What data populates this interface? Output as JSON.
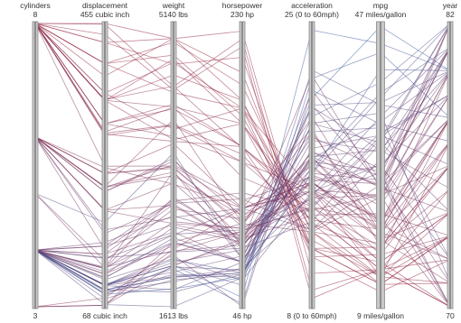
{
  "chart_data": {
    "type": "parallel-coordinates",
    "color_scale": {
      "high_mpg": "#3a5fa5",
      "low_mpg": "#a0243a"
    },
    "highlighted_axis": "mpg",
    "axes": [
      {
        "key": "cylinders",
        "name": "cylinders",
        "max_label": "8",
        "min_label": "3",
        "max": 8,
        "min": 3
      },
      {
        "key": "displacement",
        "name": "displacement",
        "max_label": "455 cubic inch",
        "min_label": "68 cubic inch",
        "max": 455,
        "min": 68
      },
      {
        "key": "weight",
        "name": "weight",
        "max_label": "5140 lbs",
        "min_label": "1613 lbs",
        "max": 5140,
        "min": 1613
      },
      {
        "key": "horsepower",
        "name": "horsepower",
        "max_label": "230 hp",
        "min_label": "46 hp",
        "max": 230,
        "min": 46
      },
      {
        "key": "acceleration",
        "name": "acceleration",
        "max_label": "25 (0 to 60mph)",
        "min_label": "8 (0 to 60mph)",
        "max": 25,
        "min": 8
      },
      {
        "key": "mpg",
        "name": "mpg",
        "max_label": "47 miles/gallon",
        "min_label": "9 miles/gallon",
        "max": 47,
        "min": 9
      },
      {
        "key": "year",
        "name": "year",
        "max_label": "82",
        "min_label": "70",
        "max": 82,
        "min": 70
      }
    ],
    "records": [
      [
        8,
        455,
        4951,
        225,
        10,
        14,
        73
      ],
      [
        8,
        440,
        4312,
        215,
        8.5,
        14,
        70
      ],
      [
        8,
        429,
        4633,
        208,
        11,
        11,
        72
      ],
      [
        8,
        400,
        4906,
        190,
        12.5,
        12,
        73
      ],
      [
        8,
        454,
        4354,
        220,
        9,
        14,
        70
      ],
      [
        8,
        350,
        4499,
        180,
        12.5,
        13,
        74
      ],
      [
        8,
        383,
        4955,
        180,
        11.5,
        12,
        71
      ],
      [
        8,
        360,
        4654,
        175,
        13,
        13,
        73
      ],
      [
        8,
        350,
        3693,
        165,
        11.5,
        15,
        70
      ],
      [
        8,
        318,
        4135,
        150,
        13.5,
        14,
        72
      ],
      [
        8,
        304,
        3672,
        150,
        11.5,
        17,
        76
      ],
      [
        8,
        302,
        3870,
        140,
        15,
        16,
        76
      ],
      [
        8,
        400,
        4746,
        170,
        12,
        13,
        71
      ],
      [
        8,
        351,
        4360,
        149,
        14.5,
        15,
        74
      ],
      [
        8,
        305,
        3880,
        145,
        12.5,
        17.5,
        77
      ],
      [
        8,
        350,
        4100,
        165,
        13,
        16.5,
        78
      ],
      [
        8,
        260,
        3365,
        110,
        15.5,
        19.2,
        78
      ],
      [
        8,
        318,
        3735,
        140,
        13.2,
        19.4,
        78
      ],
      [
        8,
        307,
        4098,
        130,
        14,
        17,
        75
      ],
      [
        8,
        400,
        4278,
        175,
        15,
        13,
        77
      ],
      [
        8,
        429,
        4952,
        198,
        11.5,
        12,
        73
      ],
      [
        8,
        318,
        4077,
        150,
        14,
        15,
        74
      ],
      [
        8,
        350,
        4699,
        165,
        13.5,
        14,
        75
      ],
      [
        8,
        360,
        3821,
        175,
        11,
        16,
        73
      ],
      [
        6,
        250,
        3336,
        100,
        17,
        19,
        76
      ],
      [
        6,
        232,
        3288,
        90,
        15.5,
        18,
        71
      ],
      [
        6,
        225,
        3430,
        105,
        16.5,
        20,
        72
      ],
      [
        6,
        199,
        2648,
        97,
        15,
        21,
        70
      ],
      [
        6,
        250,
        3645,
        110,
        18.7,
        17,
        76
      ],
      [
        6,
        258,
        3139,
        110,
        15,
        18,
        74
      ],
      [
        6,
        200,
        2875,
        85,
        17,
        20.2,
        78
      ],
      [
        6,
        231,
        3245,
        105,
        15.4,
        20.6,
        78
      ],
      [
        6,
        225,
        3465,
        85,
        16.6,
        25.4,
        81
      ],
      [
        6,
        173,
        2725,
        110,
        12.6,
        28.8,
        81
      ],
      [
        6,
        231,
        3380,
        115,
        15.8,
        23.2,
        79
      ],
      [
        6,
        146,
        2930,
        120,
        13.8,
        24,
        82
      ],
      [
        6,
        168,
        2900,
        116,
        12.6,
        25.4,
        81
      ],
      [
        6,
        250,
        3353,
        98,
        19.4,
        20,
        80
      ],
      [
        6,
        200,
        3155,
        88,
        16.3,
        22.5,
        79
      ],
      [
        6,
        232,
        3945,
        100,
        18.5,
        19,
        77
      ],
      [
        4,
        97,
        2130,
        88,
        14.5,
        27,
        70
      ],
      [
        4,
        113,
        2372,
        95,
        15,
        24,
        70
      ],
      [
        4,
        98,
        2164,
        83,
        15.5,
        28,
        72
      ],
      [
        4,
        79,
        1950,
        67,
        19,
        31,
        74
      ],
      [
        4,
        97,
        1825,
        75,
        18.5,
        33,
        72
      ],
      [
        4,
        71,
        1613,
        65,
        19,
        35,
        71
      ],
      [
        4,
        91,
        1795,
        67,
        17.5,
        32,
        76
      ],
      [
        4,
        120,
        2672,
        97,
        14.5,
        24,
        76
      ],
      [
        4,
        140,
        2542,
        75,
        17,
        25,
        74
      ],
      [
        4,
        122,
        2310,
        86,
        16,
        26,
        71
      ],
      [
        4,
        98,
        2045,
        79,
        17,
        30,
        75
      ],
      [
        4,
        89,
        1925,
        71,
        14,
        31.9,
        79
      ],
      [
        4,
        85,
        2110,
        70,
        21,
        33.5,
        77
      ],
      [
        4,
        105,
        2215,
        63,
        14.9,
        34.5,
        81
      ],
      [
        4,
        91,
        1985,
        68,
        16,
        37,
        82
      ],
      [
        4,
        97,
        2255,
        46,
        21,
        26,
        70
      ],
      [
        4,
        98,
        2125,
        60,
        22.2,
        36.1,
        78
      ],
      [
        4,
        86,
        2019,
        65,
        16.4,
        37.7,
        81
      ],
      [
        4,
        91,
        1980,
        68,
        19.4,
        39.1,
        82
      ],
      [
        4,
        90,
        2085,
        48,
        21.7,
        43.1,
        78
      ],
      [
        4,
        97,
        2130,
        52,
        24.6,
        44.3,
        80
      ],
      [
        4,
        85,
        1835,
        65,
        20.5,
        46.6,
        80
      ],
      [
        4,
        116,
        2420,
        75,
        16.9,
        33.8,
        80
      ],
      [
        4,
        151,
        2635,
        90,
        18.2,
        27.5,
        80
      ],
      [
        4,
        156,
        2745,
        92,
        16.7,
        27.2,
        81
      ],
      [
        4,
        135,
        2295,
        84,
        13.1,
        31,
        82
      ],
      [
        4,
        112,
        2605,
        88,
        17.3,
        25,
        81
      ],
      [
        4,
        121,
        2511,
        110,
        14.9,
        28,
        79
      ],
      [
        4,
        140,
        2890,
        86,
        15.6,
        25.5,
        82
      ],
      [
        4,
        151,
        2950,
        90,
        17.3,
        26.5,
        82
      ],
      [
        4,
        107,
        2472,
        75,
        14.7,
        32.3,
        79
      ],
      [
        4,
        98,
        2200,
        68,
        16,
        40.8,
        80
      ],
      [
        4,
        120,
        2979,
        88,
        21.9,
        24.8,
        78
      ],
      [
        4,
        134,
        2515,
        96,
        13.9,
        31.5,
        82
      ],
      [
        4,
        108,
        2410,
        75,
        18,
        29.8,
        81
      ],
      [
        4,
        97,
        1990,
        70,
        20,
        30,
        80
      ],
      [
        5,
        131,
        2830,
        103,
        15.9,
        23.4,
        80
      ],
      [
        5,
        121,
        3300,
        77,
        20.1,
        25.4,
        78
      ],
      [
        5,
        183,
        3530,
        77,
        20.1,
        36.4,
        80
      ],
      [
        3,
        70,
        2124,
        90,
        13.5,
        21.5,
        73
      ],
      [
        3,
        80,
        2330,
        110,
        15.5,
        19,
        72
      ],
      [
        3,
        70,
        2420,
        100,
        12.5,
        23.7,
        80
      ],
      [
        3,
        70,
        2290,
        95,
        14,
        20.3,
        77
      ]
    ]
  }
}
